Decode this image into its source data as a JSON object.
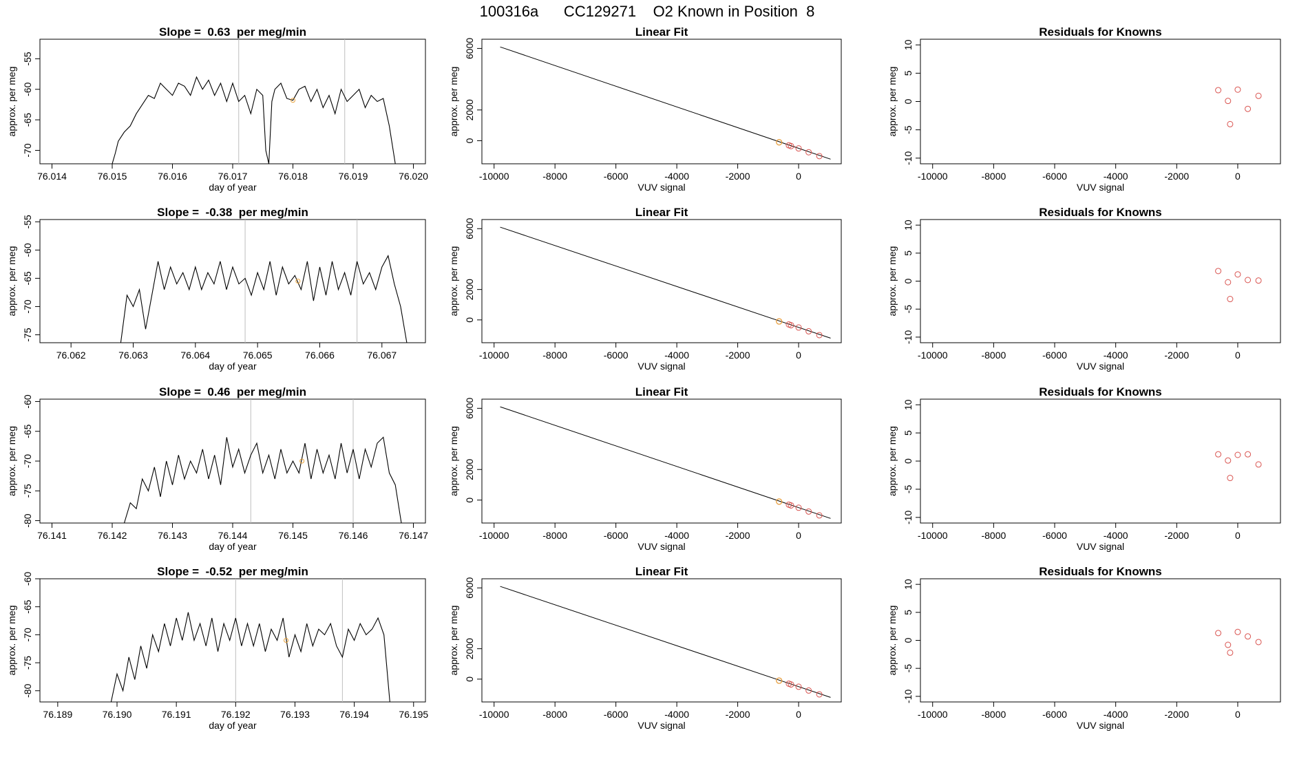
{
  "page_title": "100316a      CC129271    O2 Known in Position  8",
  "chart_data": [
    {
      "type": "line",
      "title": "Slope =  0.63  per meg/min",
      "xlabel": "day of year",
      "ylabel": "approx. per meg",
      "xlim": [
        76.0138,
        76.0202
      ],
      "ylim": [
        -72.2,
        -51.8
      ],
      "xticks": [
        76.014,
        76.015,
        76.016,
        76.017,
        76.018,
        76.019,
        76.02
      ],
      "xtick_labels": [
        "76.014",
        "76.015",
        "76.016",
        "76.017",
        "76.018",
        "76.019",
        "76.020"
      ],
      "yticks": [
        -70,
        -65,
        -60,
        -55
      ],
      "ytick_labels": [
        "-70",
        "-65",
        "-60",
        "-55"
      ],
      "vlines": [
        76.0171,
        76.01886
      ],
      "series_start": 76.015,
      "series_end": 76.0197,
      "x": [
        76.015,
        76.01505,
        76.0151,
        76.0152,
        76.0153,
        76.0154,
        76.0155,
        76.0156,
        76.0157,
        76.0158,
        76.0159,
        76.016,
        76.0161,
        76.0162,
        76.0163,
        76.0164,
        76.0165,
        76.0166,
        76.0167,
        76.0168,
        76.0169,
        76.017,
        76.0171,
        76.0172,
        76.0173,
        76.0174,
        76.0175,
        76.01755,
        76.0176,
        76.01765,
        76.0177,
        76.0178,
        76.0179,
        76.018,
        76.0181,
        76.0182,
        76.0183,
        76.0184,
        76.0185,
        76.0186,
        76.0187,
        76.0188,
        76.0189,
        76.019,
        76.0191,
        76.0192,
        76.0193,
        76.0194,
        76.0195,
        76.0196,
        76.0197
      ],
      "y": [
        -72.2,
        -70.5,
        -68.5,
        -67,
        -66,
        -64,
        -62.5,
        -61,
        -61.5,
        -59,
        -60,
        -61,
        -59,
        -59.5,
        -61,
        -58,
        -60,
        -58.5,
        -61,
        -59,
        -62,
        -59,
        -62,
        -61,
        -64,
        -60,
        -61,
        -70,
        -72.2,
        -62,
        -60,
        -59,
        -61.5,
        -61.8,
        -60,
        -59.5,
        -62,
        -60,
        -63,
        -61,
        -64,
        -60,
        -62,
        -61,
        -60,
        -63,
        -61,
        -62,
        -61.5,
        -66,
        -72.2
      ],
      "known_marker": {
        "x": 76.018,
        "y": -61.8
      }
    },
    {
      "type": "line",
      "title": "Linear Fit",
      "xlabel": "VUV signal",
      "ylabel": "approx. per meg",
      "xlim": [
        -10400,
        1400
      ],
      "ylim": [
        -1500,
        6600
      ],
      "xticks": [
        -10000,
        -8000,
        -6000,
        -4000,
        -2000,
        0
      ],
      "xtick_labels": [
        "-10000",
        "-8000",
        "-6000",
        "-4000",
        "-2000",
        "0"
      ],
      "yticks": [
        0,
        2000,
        6000
      ],
      "ytick_labels": [
        "0",
        "2000",
        "6000"
      ],
      "line": {
        "x": [
          -9800,
          1050
        ],
        "y": [
          6100,
          -1200
        ]
      },
      "points": {
        "x": [
          -640,
          -320,
          -250,
          0,
          330,
          680
        ],
        "y": [
          -100,
          -300,
          -350,
          -500,
          -750,
          -1000
        ]
      },
      "orange_point": {
        "x": -640,
        "y": -100
      }
    },
    {
      "type": "scatter",
      "title": "Residuals for Knowns",
      "xlabel": "VUV signal",
      "ylabel": "approx. per meg",
      "xlim": [
        -10400,
        1400
      ],
      "ylim": [
        -11,
        11
      ],
      "xticks": [
        -10000,
        -8000,
        -6000,
        -4000,
        -2000,
        0
      ],
      "xtick_labels": [
        "-10000",
        "-8000",
        "-6000",
        "-4000",
        "-2000",
        "0"
      ],
      "yticks": [
        -10,
        -5,
        0,
        5,
        10
      ],
      "ytick_labels": [
        "-10",
        "-5",
        "0",
        "5",
        "10"
      ],
      "points": {
        "x": [
          -640,
          -320,
          -250,
          0,
          330,
          680
        ],
        "y": [
          2.0,
          0.1,
          -4.0,
          2.1,
          -1.3,
          1.0
        ]
      }
    },
    {
      "type": "line",
      "title": "Slope =  -0.38  per meg/min",
      "xlabel": "day of year",
      "ylabel": "approx. per meg",
      "xlim": [
        76.0615,
        76.0677
      ],
      "ylim": [
        -76.4,
        -54.6
      ],
      "xticks": [
        76.062,
        76.063,
        76.064,
        76.065,
        76.066,
        76.067
      ],
      "xtick_labels": [
        "76.062",
        "76.063",
        "76.064",
        "76.065",
        "76.066",
        "76.067"
      ],
      "yticks": [
        -75,
        -70,
        -65,
        -60,
        -55
      ],
      "ytick_labels": [
        "-75",
        "-70",
        "-65",
        "-60",
        "-55"
      ],
      "vlines": [
        76.0648,
        76.0666
      ],
      "series_start": 76.0628,
      "series_end": 76.0674,
      "x": [
        76.0628,
        76.0629,
        76.063,
        76.0631,
        76.0632,
        76.0633,
        76.0634,
        76.0635,
        76.0636,
        76.0637,
        76.0638,
        76.0639,
        76.064,
        76.0641,
        76.0642,
        76.0643,
        76.0644,
        76.0645,
        76.0646,
        76.0647,
        76.0648,
        76.0649,
        76.065,
        76.0651,
        76.0652,
        76.0653,
        76.0654,
        76.0655,
        76.0656,
        76.0657,
        76.0658,
        76.0659,
        76.066,
        76.0661,
        76.0662,
        76.0663,
        76.0664,
        76.0665,
        76.0666,
        76.0667,
        76.0668,
        76.0669,
        76.067,
        76.0671,
        76.0672,
        76.0673,
        76.0674
      ],
      "y": [
        -76.4,
        -68,
        -70,
        -67,
        -74,
        -68,
        -62,
        -67,
        -63,
        -66,
        -64,
        -67,
        -63,
        -67,
        -64,
        -66,
        -62,
        -67,
        -63,
        -66,
        -65,
        -68,
        -64,
        -67,
        -62,
        -68,
        -63,
        -66,
        -64.5,
        -67,
        -62,
        -69,
        -63,
        -68,
        -62,
        -67,
        -64,
        -68,
        -62,
        -66,
        -64,
        -67,
        -63,
        -61,
        -66,
        -70,
        -76.4
      ],
      "known_marker": {
        "x": 76.06565,
        "y": -65.5
      }
    },
    {
      "type": "line",
      "title": "Linear Fit",
      "xlabel": "VUV signal",
      "ylabel": "approx. per meg",
      "xlim": [
        -10400,
        1400
      ],
      "ylim": [
        -1500,
        6600
      ],
      "xticks": [
        -10000,
        -8000,
        -6000,
        -4000,
        -2000,
        0
      ],
      "xtick_labels": [
        "-10000",
        "-8000",
        "-6000",
        "-4000",
        "-2000",
        "0"
      ],
      "yticks": [
        0,
        2000,
        6000
      ],
      "ytick_labels": [
        "0",
        "2000",
        "6000"
      ],
      "line": {
        "x": [
          -9800,
          1050
        ],
        "y": [
          6100,
          -1200
        ]
      },
      "points": {
        "x": [
          -640,
          -320,
          -250,
          0,
          330,
          680
        ],
        "y": [
          -100,
          -300,
          -350,
          -500,
          -750,
          -1000
        ]
      },
      "orange_point": {
        "x": -640,
        "y": -100
      }
    },
    {
      "type": "scatter",
      "title": "Residuals for Knowns",
      "xlabel": "VUV signal",
      "ylabel": "approx. per meg",
      "xlim": [
        -10400,
        1400
      ],
      "ylim": [
        -11,
        11
      ],
      "xticks": [
        -10000,
        -8000,
        -6000,
        -4000,
        -2000,
        0
      ],
      "xtick_labels": [
        "-10000",
        "-8000",
        "-6000",
        "-4000",
        "-2000",
        "0"
      ],
      "yticks": [
        -10,
        -5,
        0,
        5,
        10
      ],
      "ytick_labels": [
        "-10",
        "-5",
        "0",
        "5",
        "10"
      ],
      "points": {
        "x": [
          -640,
          -320,
          -250,
          0,
          330,
          680
        ],
        "y": [
          1.8,
          -0.2,
          -3.2,
          1.2,
          0.2,
          0.1
        ]
      }
    },
    {
      "type": "line",
      "title": "Slope =  0.46  per meg/min",
      "xlabel": "day of year",
      "ylabel": "approx. per meg",
      "xlim": [
        76.1408,
        76.1472
      ],
      "ylim": [
        -80.4,
        -59.6
      ],
      "xticks": [
        76.141,
        76.142,
        76.143,
        76.144,
        76.145,
        76.146,
        76.147
      ],
      "xtick_labels": [
        "76.141",
        "76.142",
        "76.143",
        "76.144",
        "76.145",
        "76.146",
        "76.147"
      ],
      "yticks": [
        -80,
        -75,
        -70,
        -65,
        -60
      ],
      "ytick_labels": [
        "-80",
        "-75",
        "-70",
        "-65",
        "-60"
      ],
      "vlines": [
        76.1443,
        76.146
      ],
      "series_start": 76.1422,
      "series_end": 76.1468,
      "x": [
        76.1422,
        76.1423,
        76.1424,
        76.1425,
        76.1426,
        76.1427,
        76.1428,
        76.1429,
        76.143,
        76.1431,
        76.1432,
        76.1433,
        76.1434,
        76.1435,
        76.1436,
        76.1437,
        76.1438,
        76.1439,
        76.144,
        76.1441,
        76.1442,
        76.1443,
        76.1444,
        76.1445,
        76.1446,
        76.1447,
        76.1448,
        76.1449,
        76.145,
        76.1451,
        76.1452,
        76.1453,
        76.1454,
        76.1455,
        76.1456,
        76.1457,
        76.1458,
        76.1459,
        76.146,
        76.1461,
        76.1462,
        76.1463,
        76.1464,
        76.1465,
        76.1466,
        76.1467,
        76.1468
      ],
      "y": [
        -80.4,
        -77,
        -78,
        -73,
        -75,
        -71,
        -76,
        -70,
        -74,
        -69,
        -73,
        -70,
        -72,
        -68,
        -73,
        -69,
        -74,
        -66,
        -71,
        -68,
        -72,
        -69,
        -67,
        -72,
        -69,
        -73,
        -68,
        -72,
        -70,
        -72,
        -67,
        -73,
        -68,
        -72,
        -69,
        -73,
        -67,
        -72,
        -68,
        -73,
        -68,
        -71,
        -67,
        -66,
        -72,
        -74,
        -80.4
      ],
      "known_marker": {
        "x": 76.14515,
        "y": -70.0
      }
    },
    {
      "type": "line",
      "title": "Linear Fit",
      "xlabel": "VUV signal",
      "ylabel": "approx. per meg",
      "xlim": [
        -10400,
        1400
      ],
      "ylim": [
        -1500,
        6600
      ],
      "xticks": [
        -10000,
        -8000,
        -6000,
        -4000,
        -2000,
        0
      ],
      "xtick_labels": [
        "-10000",
        "-8000",
        "-6000",
        "-4000",
        "-2000",
        "0"
      ],
      "yticks": [
        0,
        2000,
        6000
      ],
      "ytick_labels": [
        "0",
        "2000",
        "6000"
      ],
      "line": {
        "x": [
          -9800,
          1050
        ],
        "y": [
          6100,
          -1200
        ]
      },
      "points": {
        "x": [
          -640,
          -320,
          -250,
          0,
          330,
          680
        ],
        "y": [
          -100,
          -300,
          -350,
          -500,
          -750,
          -1000
        ]
      },
      "orange_point": {
        "x": -640,
        "y": -100
      }
    },
    {
      "type": "scatter",
      "title": "Residuals for Knowns",
      "xlabel": "VUV signal",
      "ylabel": "approx. per meg",
      "xlim": [
        -10400,
        1400
      ],
      "ylim": [
        -11,
        11
      ],
      "xticks": [
        -10000,
        -8000,
        -6000,
        -4000,
        -2000,
        0
      ],
      "xtick_labels": [
        "-10000",
        "-8000",
        "-6000",
        "-4000",
        "-2000",
        "0"
      ],
      "yticks": [
        -10,
        -5,
        0,
        5,
        10
      ],
      "ytick_labels": [
        "-10",
        "-5",
        "0",
        "5",
        "10"
      ],
      "points": {
        "x": [
          -640,
          -320,
          -250,
          0,
          330,
          680
        ],
        "y": [
          1.2,
          0.1,
          -3.0,
          1.1,
          1.2,
          -0.6
        ]
      }
    },
    {
      "type": "line",
      "title": "Slope =  -0.52  per meg/min",
      "xlabel": "day of year",
      "ylabel": "approx. per meg",
      "xlim": [
        76.1887,
        76.1952
      ],
      "ylim": [
        -82,
        -60
      ],
      "xticks": [
        76.189,
        76.19,
        76.191,
        76.192,
        76.193,
        76.194,
        76.195
      ],
      "xtick_labels": [
        "76.189",
        "76.190",
        "76.191",
        "76.192",
        "76.193",
        "76.194",
        "76.195"
      ],
      "yticks": [
        -80,
        -75,
        -70,
        -65,
        -60
      ],
      "ytick_labels": [
        "-80",
        "-75",
        "-70",
        "-65",
        "-60"
      ],
      "vlines": [
        76.192,
        76.1938
      ],
      "series_start": 76.1899,
      "series_end": 76.1946,
      "x": [
        76.1899,
        76.19,
        76.1901,
        76.1902,
        76.1903,
        76.1904,
        76.1905,
        76.1906,
        76.1907,
        76.1908,
        76.1909,
        76.191,
        76.1911,
        76.1912,
        76.1913,
        76.1914,
        76.1915,
        76.1916,
        76.1917,
        76.1918,
        76.1919,
        76.192,
        76.1921,
        76.1922,
        76.1923,
        76.1924,
        76.1925,
        76.1926,
        76.1927,
        76.1928,
        76.1929,
        76.193,
        76.1931,
        76.1932,
        76.1933,
        76.1934,
        76.1935,
        76.1936,
        76.1937,
        76.1938,
        76.1939,
        76.194,
        76.1941,
        76.1942,
        76.1943,
        76.1944,
        76.1945,
        76.1946
      ],
      "y": [
        -82,
        -77,
        -80,
        -74,
        -78,
        -72,
        -76,
        -70,
        -73,
        -68,
        -72,
        -67,
        -71,
        -66,
        -71,
        -68,
        -72,
        -67,
        -73,
        -68,
        -71,
        -67,
        -72,
        -68,
        -72,
        -68,
        -73,
        -69,
        -71,
        -67,
        -74,
        -70,
        -73,
        -68,
        -72,
        -69,
        -70,
        -68,
        -72,
        -74,
        -69,
        -71,
        -68,
        -70,
        -69,
        -67,
        -70,
        -82
      ],
      "known_marker": {
        "x": 76.19285,
        "y": -71.0
      }
    },
    {
      "type": "line",
      "title": "Linear Fit",
      "xlabel": "VUV signal",
      "ylabel": "approx. per meg",
      "xlim": [
        -10400,
        1400
      ],
      "ylim": [
        -1500,
        6600
      ],
      "xticks": [
        -10000,
        -8000,
        -6000,
        -4000,
        -2000,
        0
      ],
      "xtick_labels": [
        "-10000",
        "-8000",
        "-6000",
        "-4000",
        "-2000",
        "0"
      ],
      "yticks": [
        0,
        2000,
        6000
      ],
      "ytick_labels": [
        "0",
        "2000",
        "6000"
      ],
      "line": {
        "x": [
          -9800,
          1050
        ],
        "y": [
          6100,
          -1200
        ]
      },
      "points": {
        "x": [
          -640,
          -320,
          -250,
          0,
          330,
          680
        ],
        "y": [
          -100,
          -300,
          -350,
          -500,
          -750,
          -1000
        ]
      },
      "orange_point": {
        "x": -640,
        "y": -100
      }
    },
    {
      "type": "scatter",
      "title": "Residuals for Knowns",
      "xlabel": "VUV signal",
      "ylabel": "approx. per meg",
      "xlim": [
        -10400,
        1400
      ],
      "ylim": [
        -11,
        11
      ],
      "xticks": [
        -10000,
        -8000,
        -6000,
        -4000,
        -2000,
        0
      ],
      "xtick_labels": [
        "-10000",
        "-8000",
        "-6000",
        "-4000",
        "-2000",
        "0"
      ],
      "yticks": [
        -10,
        -5,
        0,
        5,
        10
      ],
      "ytick_labels": [
        "-10",
        "-5",
        "0",
        "5",
        "10"
      ],
      "points": {
        "x": [
          -640,
          -320,
          -250,
          0,
          330,
          680
        ],
        "y": [
          1.3,
          -0.8,
          -2.2,
          1.5,
          0.7,
          -0.3
        ]
      }
    }
  ],
  "colors": {
    "axis": "#000000",
    "line": "#000000",
    "vline": "#bebebe",
    "point_red": "#d9534f",
    "point_orange": "#e8a23a"
  }
}
